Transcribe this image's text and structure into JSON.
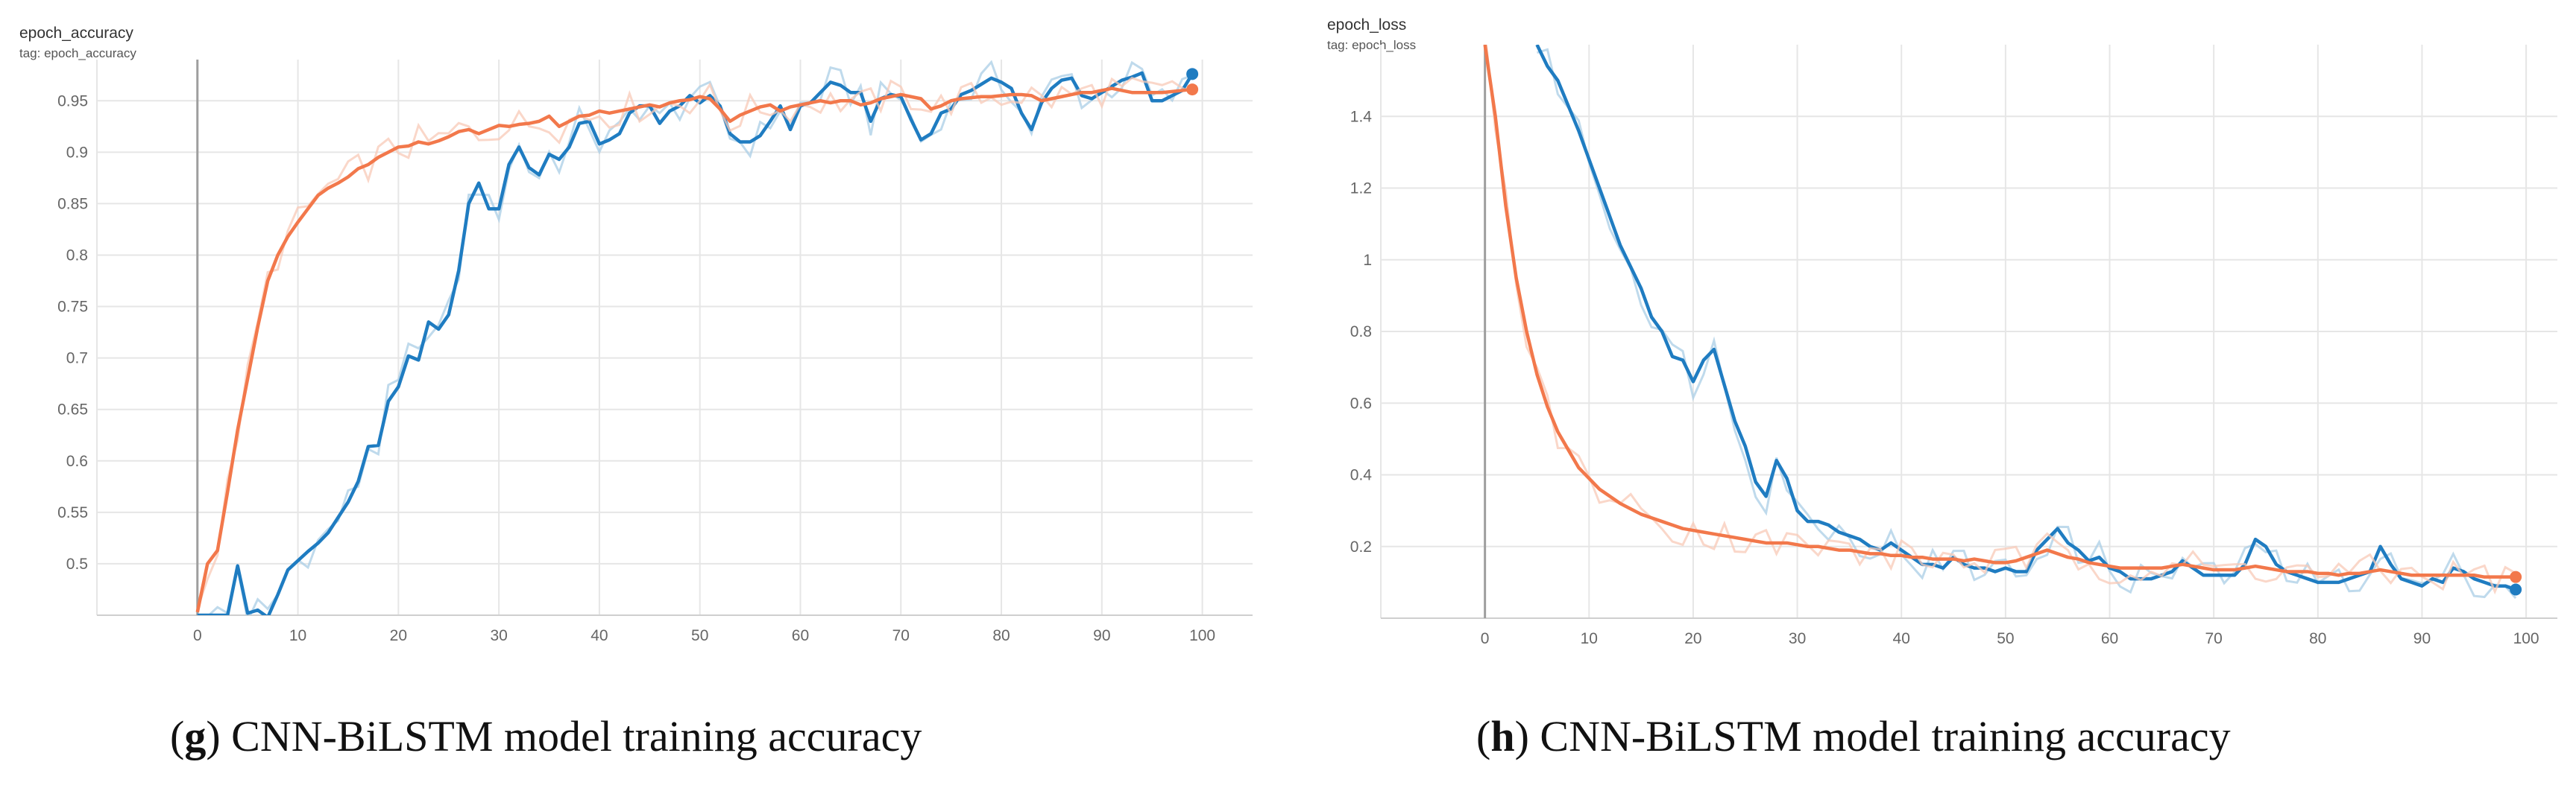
{
  "charts_ui": {
    "g": {
      "title": "epoch_accuracy",
      "tag": "tag: epoch_accuracy",
      "caption_letter": "g",
      "caption_text": " CNN-BiLSTM model training accuracy"
    },
    "h": {
      "title": "epoch_loss",
      "tag": "tag: epoch_loss",
      "caption_letter": "h",
      "caption_text": " CNN-BiLSTM model training accuracy"
    }
  },
  "colors": {
    "blue": "#1f7cc1",
    "blue_raw": "#a9cde6",
    "orange": "#f2784b",
    "orange_raw": "#f8c9b7",
    "grid": "#e6e6e6",
    "zero_line": "#9e9e9e"
  },
  "chart_data": [
    {
      "type": "line",
      "title": "epoch_accuracy",
      "subtitle": "tag: epoch_accuracy",
      "xlabel": "",
      "ylabel": "",
      "xlim": [
        -10,
        105
      ],
      "ylim": [
        0.45,
        0.99
      ],
      "xticks": [
        0,
        10,
        20,
        30,
        40,
        50,
        60,
        70,
        80,
        90,
        100
      ],
      "yticks": [
        0.5,
        0.55,
        0.6,
        0.65,
        0.7,
        0.75,
        0.8,
        0.85,
        0.9,
        0.95
      ],
      "grid": true,
      "series": [
        {
          "color": "blue",
          "x": [
            0,
            2,
            3,
            4,
            5,
            6,
            7,
            8,
            9,
            10,
            11,
            12,
            13,
            14,
            15,
            16,
            17,
            18,
            19,
            20,
            21,
            22,
            23,
            24,
            25,
            26,
            27,
            28,
            29,
            30,
            31,
            32,
            33,
            34,
            35,
            36,
            37,
            38,
            39,
            40,
            41,
            42,
            43,
            44,
            45,
            46,
            47,
            48,
            49,
            50,
            51,
            52,
            53,
            54,
            55,
            56,
            57,
            58,
            59,
            60,
            61,
            62,
            63,
            64,
            65,
            66,
            67,
            68,
            69,
            70,
            71,
            72,
            73,
            74,
            75,
            76,
            77,
            78,
            79,
            80,
            81,
            82,
            83,
            84,
            85,
            86,
            87,
            88,
            89,
            90,
            91,
            92,
            93,
            94,
            95,
            96,
            97,
            98,
            99
          ],
          "values": [
            0.45,
            0.45,
            0.45,
            0.498,
            0.452,
            0.455,
            0.448,
            0.47,
            0.494,
            0.503,
            0.512,
            0.52,
            0.53,
            0.545,
            0.56,
            0.58,
            0.614,
            0.615,
            0.658,
            0.672,
            0.702,
            0.698,
            0.735,
            0.728,
            0.742,
            0.785,
            0.85,
            0.87,
            0.845,
            0.845,
            0.888,
            0.905,
            0.885,
            0.878,
            0.898,
            0.893,
            0.905,
            0.928,
            0.93,
            0.908,
            0.912,
            0.918,
            0.938,
            0.945,
            0.945,
            0.928,
            0.94,
            0.945,
            0.955,
            0.948,
            0.955,
            0.945,
            0.918,
            0.91,
            0.91,
            0.916,
            0.93,
            0.945,
            0.922,
            0.945,
            0.948,
            0.958,
            0.968,
            0.965,
            0.958,
            0.958,
            0.93,
            0.952,
            0.956,
            0.954,
            0.932,
            0.912,
            0.918,
            0.938,
            0.942,
            0.956,
            0.96,
            0.966,
            0.972,
            0.968,
            0.962,
            0.938,
            0.922,
            0.948,
            0.962,
            0.97,
            0.972,
            0.955,
            0.952,
            0.958,
            0.964,
            0.97,
            0.973,
            0.977,
            0.95,
            0.95,
            0.955,
            0.96,
            0.976
          ]
        },
        {
          "color": "orange",
          "x": [
            0,
            1,
            2,
            3,
            4,
            5,
            6,
            7,
            8,
            9,
            10,
            11,
            12,
            13,
            14,
            15,
            16,
            17,
            18,
            19,
            20,
            21,
            22,
            23,
            24,
            25,
            26,
            27,
            28,
            29,
            30,
            31,
            32,
            33,
            34,
            35,
            36,
            37,
            38,
            39,
            40,
            41,
            42,
            43,
            44,
            45,
            46,
            47,
            48,
            49,
            50,
            51,
            52,
            53,
            54,
            55,
            56,
            57,
            58,
            59,
            60,
            61,
            62,
            63,
            64,
            65,
            66,
            67,
            68,
            69,
            70,
            71,
            72,
            73,
            74,
            75,
            76,
            77,
            78,
            79,
            80,
            81,
            82,
            83,
            84,
            85,
            86,
            87,
            88,
            89,
            90,
            91,
            92,
            93,
            94,
            95,
            96,
            97,
            98,
            99
          ],
          "values": [
            0.453,
            0.5,
            0.513,
            0.57,
            0.63,
            0.68,
            0.73,
            0.775,
            0.8,
            0.818,
            0.832,
            0.845,
            0.858,
            0.865,
            0.87,
            0.876,
            0.884,
            0.888,
            0.895,
            0.9,
            0.905,
            0.906,
            0.91,
            0.908,
            0.911,
            0.915,
            0.92,
            0.922,
            0.918,
            0.922,
            0.926,
            0.925,
            0.927,
            0.928,
            0.93,
            0.935,
            0.925,
            0.93,
            0.935,
            0.936,
            0.94,
            0.938,
            0.94,
            0.942,
            0.944,
            0.946,
            0.944,
            0.948,
            0.95,
            0.951,
            0.954,
            0.952,
            0.942,
            0.93,
            0.936,
            0.94,
            0.944,
            0.946,
            0.94,
            0.944,
            0.946,
            0.948,
            0.95,
            0.948,
            0.95,
            0.95,
            0.946,
            0.948,
            0.952,
            0.954,
            0.956,
            0.954,
            0.952,
            0.942,
            0.945,
            0.95,
            0.952,
            0.953,
            0.954,
            0.954,
            0.955,
            0.956,
            0.956,
            0.955,
            0.95,
            0.952,
            0.954,
            0.956,
            0.958,
            0.958,
            0.96,
            0.962,
            0.96,
            0.958,
            0.958,
            0.958,
            0.958,
            0.959,
            0.96,
            0.961
          ]
        }
      ]
    },
    {
      "type": "line",
      "title": "epoch_loss",
      "subtitle": "tag: epoch_loss",
      "xlabel": "",
      "ylabel": "",
      "xlim": [
        -10,
        103
      ],
      "ylim": [
        0,
        1.6
      ],
      "xticks": [
        0,
        10,
        20,
        30,
        40,
        50,
        60,
        70,
        80,
        90,
        100
      ],
      "yticks": [
        0.2,
        0.4,
        0.6,
        0.8,
        1,
        1.2,
        1.4
      ],
      "grid": true,
      "series": [
        {
          "color": "blue",
          "x": [
            5,
            6,
            7,
            8,
            9,
            10,
            11,
            12,
            13,
            14,
            15,
            16,
            17,
            18,
            19,
            20,
            21,
            22,
            23,
            24,
            25,
            26,
            27,
            28,
            29,
            30,
            31,
            32,
            33,
            34,
            35,
            36,
            37,
            38,
            39,
            40,
            41,
            42,
            43,
            44,
            45,
            46,
            47,
            48,
            49,
            50,
            51,
            52,
            53,
            54,
            55,
            56,
            57,
            58,
            59,
            60,
            61,
            62,
            63,
            64,
            65,
            66,
            67,
            68,
            69,
            70,
            71,
            72,
            73,
            74,
            75,
            76,
            77,
            78,
            79,
            80,
            81,
            82,
            83,
            84,
            85,
            86,
            87,
            88,
            89,
            90,
            91,
            92,
            93,
            94,
            95,
            96,
            97,
            98,
            99
          ],
          "values": [
            1.6,
            1.54,
            1.5,
            1.43,
            1.36,
            1.28,
            1.2,
            1.12,
            1.04,
            0.98,
            0.92,
            0.84,
            0.8,
            0.73,
            0.72,
            0.66,
            0.72,
            0.75,
            0.65,
            0.55,
            0.48,
            0.38,
            0.34,
            0.44,
            0.39,
            0.3,
            0.27,
            0.27,
            0.26,
            0.24,
            0.23,
            0.22,
            0.2,
            0.19,
            0.21,
            0.19,
            0.17,
            0.15,
            0.15,
            0.14,
            0.17,
            0.15,
            0.14,
            0.14,
            0.13,
            0.14,
            0.13,
            0.13,
            0.19,
            0.22,
            0.25,
            0.21,
            0.19,
            0.16,
            0.17,
            0.14,
            0.13,
            0.11,
            0.11,
            0.11,
            0.12,
            0.13,
            0.16,
            0.14,
            0.12,
            0.12,
            0.12,
            0.12,
            0.15,
            0.22,
            0.2,
            0.15,
            0.13,
            0.12,
            0.11,
            0.1,
            0.1,
            0.1,
            0.11,
            0.12,
            0.13,
            0.2,
            0.15,
            0.11,
            0.1,
            0.09,
            0.11,
            0.1,
            0.14,
            0.13,
            0.11,
            0.1,
            0.09,
            0.09,
            0.08
          ]
        },
        {
          "color": "orange",
          "x": [
            0,
            1,
            2,
            3,
            4,
            5,
            6,
            7,
            8,
            9,
            10,
            11,
            12,
            13,
            14,
            15,
            16,
            17,
            18,
            19,
            20,
            21,
            22,
            23,
            24,
            25,
            26,
            27,
            28,
            29,
            30,
            31,
            32,
            33,
            34,
            35,
            36,
            37,
            38,
            39,
            40,
            41,
            42,
            43,
            44,
            45,
            46,
            47,
            48,
            49,
            50,
            51,
            52,
            53,
            54,
            55,
            56,
            57,
            58,
            59,
            60,
            61,
            62,
            63,
            64,
            65,
            66,
            67,
            68,
            69,
            70,
            71,
            72,
            73,
            74,
            75,
            76,
            77,
            78,
            79,
            80,
            81,
            82,
            83,
            84,
            85,
            86,
            87,
            88,
            89,
            90,
            91,
            92,
            93,
            94,
            95,
            96,
            97,
            98,
            99
          ],
          "values": [
            1.6,
            1.4,
            1.15,
            0.95,
            0.8,
            0.68,
            0.59,
            0.52,
            0.47,
            0.42,
            0.39,
            0.36,
            0.34,
            0.32,
            0.305,
            0.29,
            0.28,
            0.27,
            0.26,
            0.25,
            0.245,
            0.24,
            0.235,
            0.23,
            0.225,
            0.22,
            0.215,
            0.21,
            0.21,
            0.21,
            0.205,
            0.2,
            0.2,
            0.195,
            0.19,
            0.19,
            0.185,
            0.18,
            0.18,
            0.175,
            0.175,
            0.17,
            0.17,
            0.165,
            0.165,
            0.165,
            0.16,
            0.165,
            0.16,
            0.155,
            0.155,
            0.16,
            0.17,
            0.18,
            0.19,
            0.18,
            0.17,
            0.165,
            0.155,
            0.15,
            0.145,
            0.14,
            0.14,
            0.14,
            0.14,
            0.14,
            0.145,
            0.15,
            0.145,
            0.14,
            0.135,
            0.135,
            0.135,
            0.14,
            0.145,
            0.14,
            0.135,
            0.13,
            0.13,
            0.13,
            0.125,
            0.125,
            0.12,
            0.125,
            0.125,
            0.13,
            0.135,
            0.13,
            0.125,
            0.12,
            0.12,
            0.12,
            0.12,
            0.12,
            0.12,
            0.12,
            0.115,
            0.115,
            0.115,
            0.115
          ]
        }
      ]
    }
  ]
}
